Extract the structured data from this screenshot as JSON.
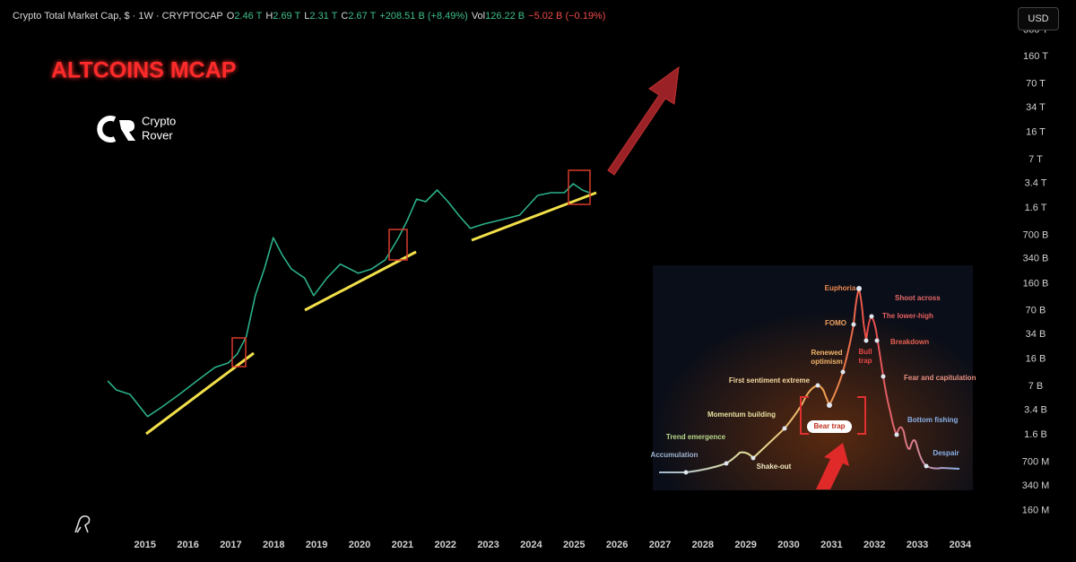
{
  "header": {
    "symbol": "Crypto Total Market Cap, $ · 1W · CRYPTOCAP",
    "ohlc": [
      {
        "label": "O",
        "value": "2.46 T"
      },
      {
        "label": "H",
        "value": "2.69 T"
      },
      {
        "label": "L",
        "value": "2.31 T"
      },
      {
        "label": "C",
        "value": "2.67 T"
      }
    ],
    "change": "+208.51 B (+8.49%)",
    "volume_label": "Vol",
    "volume": "126.22 B",
    "volume_change": "−5.02 B (−0.19%)"
  },
  "currency_button": "USD",
  "annotation_title": "ALTCOINS MCAP",
  "logo": {
    "line1": "Crypto",
    "line2": "Rover"
  },
  "chart_data": {
    "type": "line",
    "color": "#2bb08a",
    "log_scale": true,
    "x": [
      2014.13,
      2014.33,
      2014.65,
      2015.06,
      2015.38,
      2015.8,
      2016.21,
      2016.63,
      2016.94,
      2017.15,
      2017.36,
      2017.57,
      2017.78,
      2017.99,
      2018.2,
      2018.41,
      2018.72,
      2018.93,
      2019.24,
      2019.55,
      2019.97,
      2020.28,
      2020.6,
      2020.91,
      2021.12,
      2021.33,
      2021.54,
      2021.81,
      2022.06,
      2022.31,
      2022.58,
      2022.89,
      2023.31,
      2023.73,
      2024.15,
      2024.46,
      2024.77,
      2024.98,
      2025.19,
      2025.36
    ],
    "values": [
      8300000000.0,
      6300000000.0,
      5500000000.0,
      2800000000.0,
      3700000000.0,
      5500000000.0,
      8300000000.0,
      12500000000.0,
      14300000000.0,
      18800000000.0,
      32000000000.0,
      111000000000.0,
      250000000000.0,
      650000000000.0,
      380000000000.0,
      250000000000.0,
      190000000000.0,
      111000000000.0,
      190000000000.0,
      290000000000.0,
      220000000000.0,
      250000000000.0,
      330000000000.0,
      650000000000.0,
      1120000000000.0,
      2100000000000.0,
      1940000000000.0,
      2770000000000.0,
      1940000000000.0,
      1290000000000.0,
      860000000000.0,
      980000000000.0,
      1120000000000.0,
      1290000000000.0,
      2350000000000.0,
      2550000000000.0,
      2550000000000.0,
      3350000000000.0,
      2770000000000.0,
      2550000000000.0
    ],
    "xlim": [
      2011.62,
      2035.13
    ],
    "xticks": [
      2015,
      2016,
      2017,
      2018,
      2019,
      2020,
      2021,
      2022,
      2023,
      2024,
      2025,
      2026,
      2027,
      2028,
      2029,
      2030,
      2031,
      2032,
      2033,
      2034
    ],
    "ylim": [
      80000000.0,
      900000000000000.0
    ],
    "yticks": [
      {
        "value": 360000000000000.0,
        "label": "360 T"
      },
      {
        "value": 160000000000000.0,
        "label": "160 T"
      },
      {
        "value": 70000000000000.0,
        "label": "70 T"
      },
      {
        "value": 34000000000000.0,
        "label": "34 T"
      },
      {
        "value": 16000000000000.0,
        "label": "16 T"
      },
      {
        "value": 7000000000000.0,
        "label": "7 T"
      },
      {
        "value": 3400000000000.0,
        "label": "3.4 T"
      },
      {
        "value": 1600000000000.0,
        "label": "1.6 T"
      },
      {
        "value": 700000000000.0,
        "label": "700 B"
      },
      {
        "value": 340000000000.0,
        "label": "340 B"
      },
      {
        "value": 160000000000.0,
        "label": "160 B"
      },
      {
        "value": 70000000000.0,
        "label": "70 B"
      },
      {
        "value": 34000000000.0,
        "label": "34 B"
      },
      {
        "value": 16000000000.0,
        "label": "16 B"
      },
      {
        "value": 7000000000.0,
        "label": "7 B"
      },
      {
        "value": 3400000000.0,
        "label": "3.4 B"
      },
      {
        "value": 1600000000.0,
        "label": "1.6 B"
      },
      {
        "value": 700000000.0,
        "label": "700 M"
      },
      {
        "value": 340000000.0,
        "label": "340 M"
      },
      {
        "value": 160000000.0,
        "label": "160 M"
      }
    ]
  },
  "inset": {
    "labels": [
      [
        "Euphoria"
      ],
      [
        "Shoot across"
      ],
      [
        "FOMO"
      ],
      [
        "The lower-high"
      ],
      [
        "Renewed",
        "optimism"
      ],
      [
        "Bull",
        "trap"
      ],
      [
        "Breakdown"
      ],
      [
        "First sentiment extreme"
      ],
      [
        "Fear and capitulation"
      ],
      [
        "Momentum building"
      ],
      [
        "Bear trap"
      ],
      [
        "Bottom fishing"
      ],
      [
        "Trend emergence"
      ],
      [
        "Accumulation"
      ],
      [
        "Shake-out"
      ],
      [
        "Despair"
      ]
    ]
  }
}
